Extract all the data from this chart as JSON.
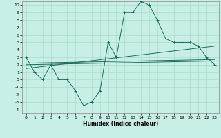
{
  "background_color": "#c8eee8",
  "grid_color": "#aaddcc",
  "line_color": "#1a6b5a",
  "xlabel": "Humidex (Indice chaleur)",
  "xlim": [
    -0.5,
    23.5
  ],
  "ylim": [
    -4.5,
    10.5
  ],
  "xticks": [
    0,
    1,
    2,
    3,
    4,
    5,
    6,
    7,
    8,
    9,
    10,
    11,
    12,
    13,
    14,
    15,
    16,
    17,
    18,
    19,
    20,
    21,
    22,
    23
  ],
  "yticks": [
    -4,
    -3,
    -2,
    -1,
    0,
    1,
    2,
    3,
    4,
    5,
    6,
    7,
    8,
    9,
    10
  ],
  "curve1_x": [
    0,
    1,
    2,
    3,
    4,
    5,
    6,
    7,
    8,
    9,
    10,
    11,
    12,
    13,
    14,
    15,
    16,
    17,
    18,
    19,
    20,
    21,
    22,
    23
  ],
  "curve1_y": [
    3,
    1,
    0,
    2,
    0,
    0,
    -1.5,
    -3.5,
    -3,
    -1.5,
    5,
    3,
    9,
    9,
    10.5,
    10,
    8,
    5.5,
    5,
    5,
    5,
    4.5,
    3,
    2
  ],
  "line2_x": [
    0,
    23
  ],
  "line2_y": [
    2,
    2.5
  ],
  "line3_x": [
    0,
    23
  ],
  "line3_y": [
    1.5,
    4.5
  ],
  "line4_x": [
    0,
    23
  ],
  "line4_y": [
    2.2,
    2.7
  ]
}
